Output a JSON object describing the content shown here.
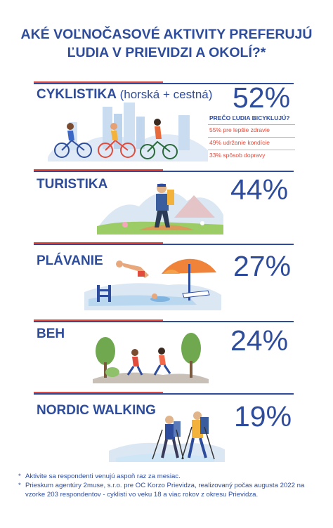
{
  "title": {
    "line1": "AKÉ VOĽNOČASOVÉ AKTIVITY PREFERUJÚ",
    "line2": "ĽUDIA V PRIEVIDZI A OKOLÍ?*"
  },
  "colors": {
    "blue": "#2e4c9c",
    "red": "#e04b3c",
    "light_blue": "#dbe8f4"
  },
  "activities": [
    {
      "label": "CYKLISTIKA",
      "sub": "(horská + cestná)",
      "percent_text": "52%"
    },
    {
      "label": "TURISTIKA",
      "percent_text": "44%"
    },
    {
      "label": "PLÁVANIE",
      "percent_text": "27%"
    },
    {
      "label": "BEH",
      "percent_text": "24%"
    },
    {
      "label": "NORDIC WALKING",
      "percent_text": "19%"
    }
  ],
  "cycling_reasons": {
    "heading": "PREČO ĽUDIA BICYKLUJÚ?",
    "items": [
      {
        "value": "55%",
        "text": "pre lepšie zdravie"
      },
      {
        "value": "49%",
        "text": "udržanie kondície"
      },
      {
        "value": "33%",
        "text": "spôsob dopravy"
      }
    ]
  },
  "notes": [
    "Aktivite sa respondenti venujú aspoň raz za mesiac.",
    "Prieskum agentúry 2muse, s.r.o. pre OC Korzo Prievidza, realizovaný počas augusta 2022 na vzorke 203 respondentov - cyklisti vo veku 18 a viac rokov z okresu Prievidza."
  ],
  "chart_data": {
    "type": "table",
    "title": "AKÉ VOĽNOČASOVÉ AKTIVITY PREFERUJÚ ĽUDIA V PRIEVIDZI A OKOLÍ?*",
    "categories": [
      "CYKLISTIKA (horská + cestná)",
      "TURISTIKA",
      "PLÁVANIE",
      "BEH",
      "NORDIC WALKING"
    ],
    "values": [
      52,
      44,
      27,
      24,
      19
    ],
    "unit": "%",
    "sub_table": {
      "title": "PREČO ĽUDIA BICYKLUJÚ?",
      "categories": [
        "pre lepšie zdravie",
        "udržanie kondície",
        "spôsob dopravy"
      ],
      "values": [
        55,
        49,
        33
      ]
    }
  }
}
